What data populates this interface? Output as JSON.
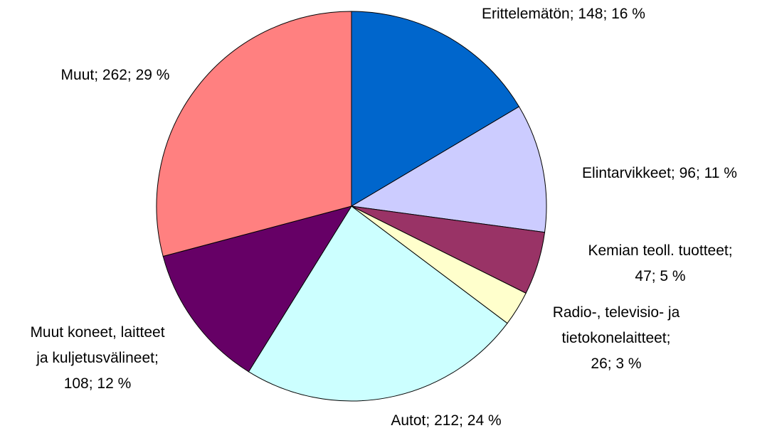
{
  "chart_data": {
    "type": "pie",
    "values": [
      148,
      96,
      47,
      26,
      212,
      108,
      262
    ],
    "value_labels": [
      [
        "Erittelemätön; 148; 16 %"
      ],
      [
        "Elintarvikkeet; 96; 11 %"
      ],
      [
        "Kemian teoll. tuotteet;",
        "47; 5 %"
      ],
      [
        "Radio-, televisio- ja",
        "tietokonelaitteet;",
        "26; 3 %"
      ],
      [
        "Autot; 212; 24 %"
      ],
      [
        "Muut koneet, laitteet",
        "ja kuljetusvälineet;",
        "108; 12 %"
      ],
      [
        "Muut; 262; 29 %"
      ]
    ],
    "colors": [
      "#0066cc",
      "#ccccff",
      "#993366",
      "#ffffcc",
      "#ccffff",
      "#660066",
      "#ff8080"
    ]
  }
}
